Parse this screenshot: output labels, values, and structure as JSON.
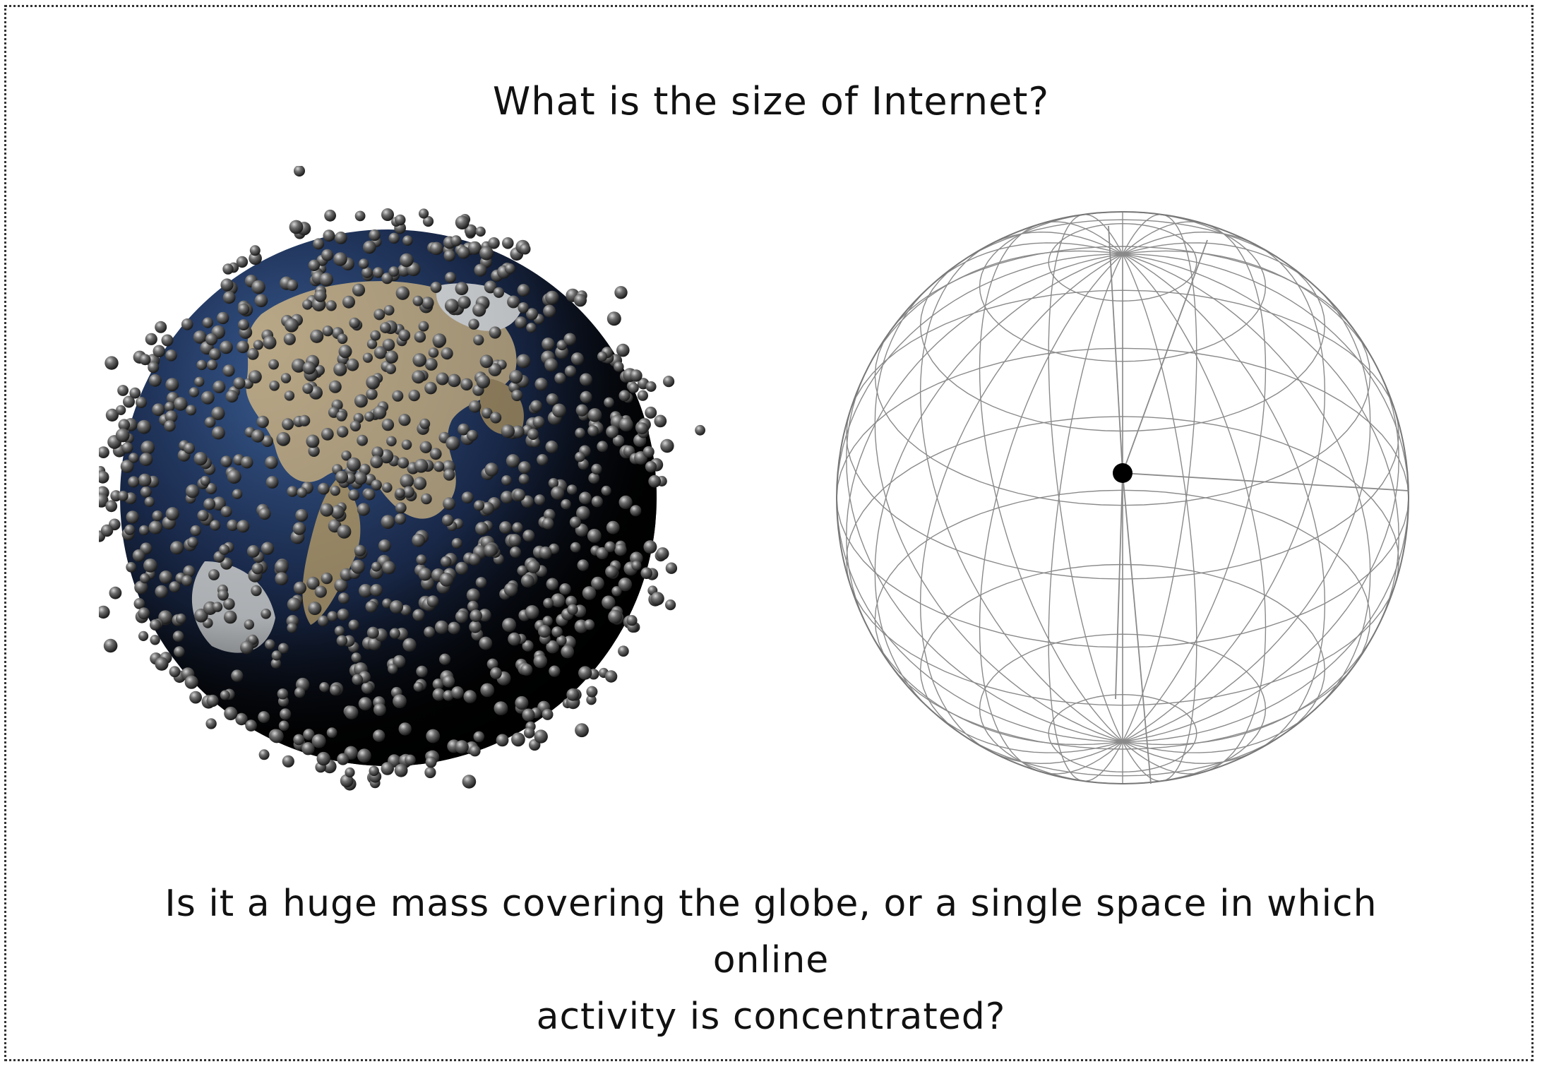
{
  "slide": {
    "title": "What is the size of Internet?",
    "caption_line1": "Is it a huge mass covering the globe, or a single space in which online",
    "caption_line2": "activity is concentrated?"
  },
  "colors": {
    "text": "#111111",
    "border": "#333333",
    "ocean": "#1d2f55",
    "land": "#b9a887",
    "ice": "#d9dde0",
    "node": "#3a3a3a",
    "wire": "#8a8a8a",
    "center_dot": "#000000"
  },
  "figures": {
    "left": {
      "kind": "globe-covered-with-nodes"
    },
    "right": {
      "kind": "wireframe-sphere-with-center-node"
    }
  }
}
